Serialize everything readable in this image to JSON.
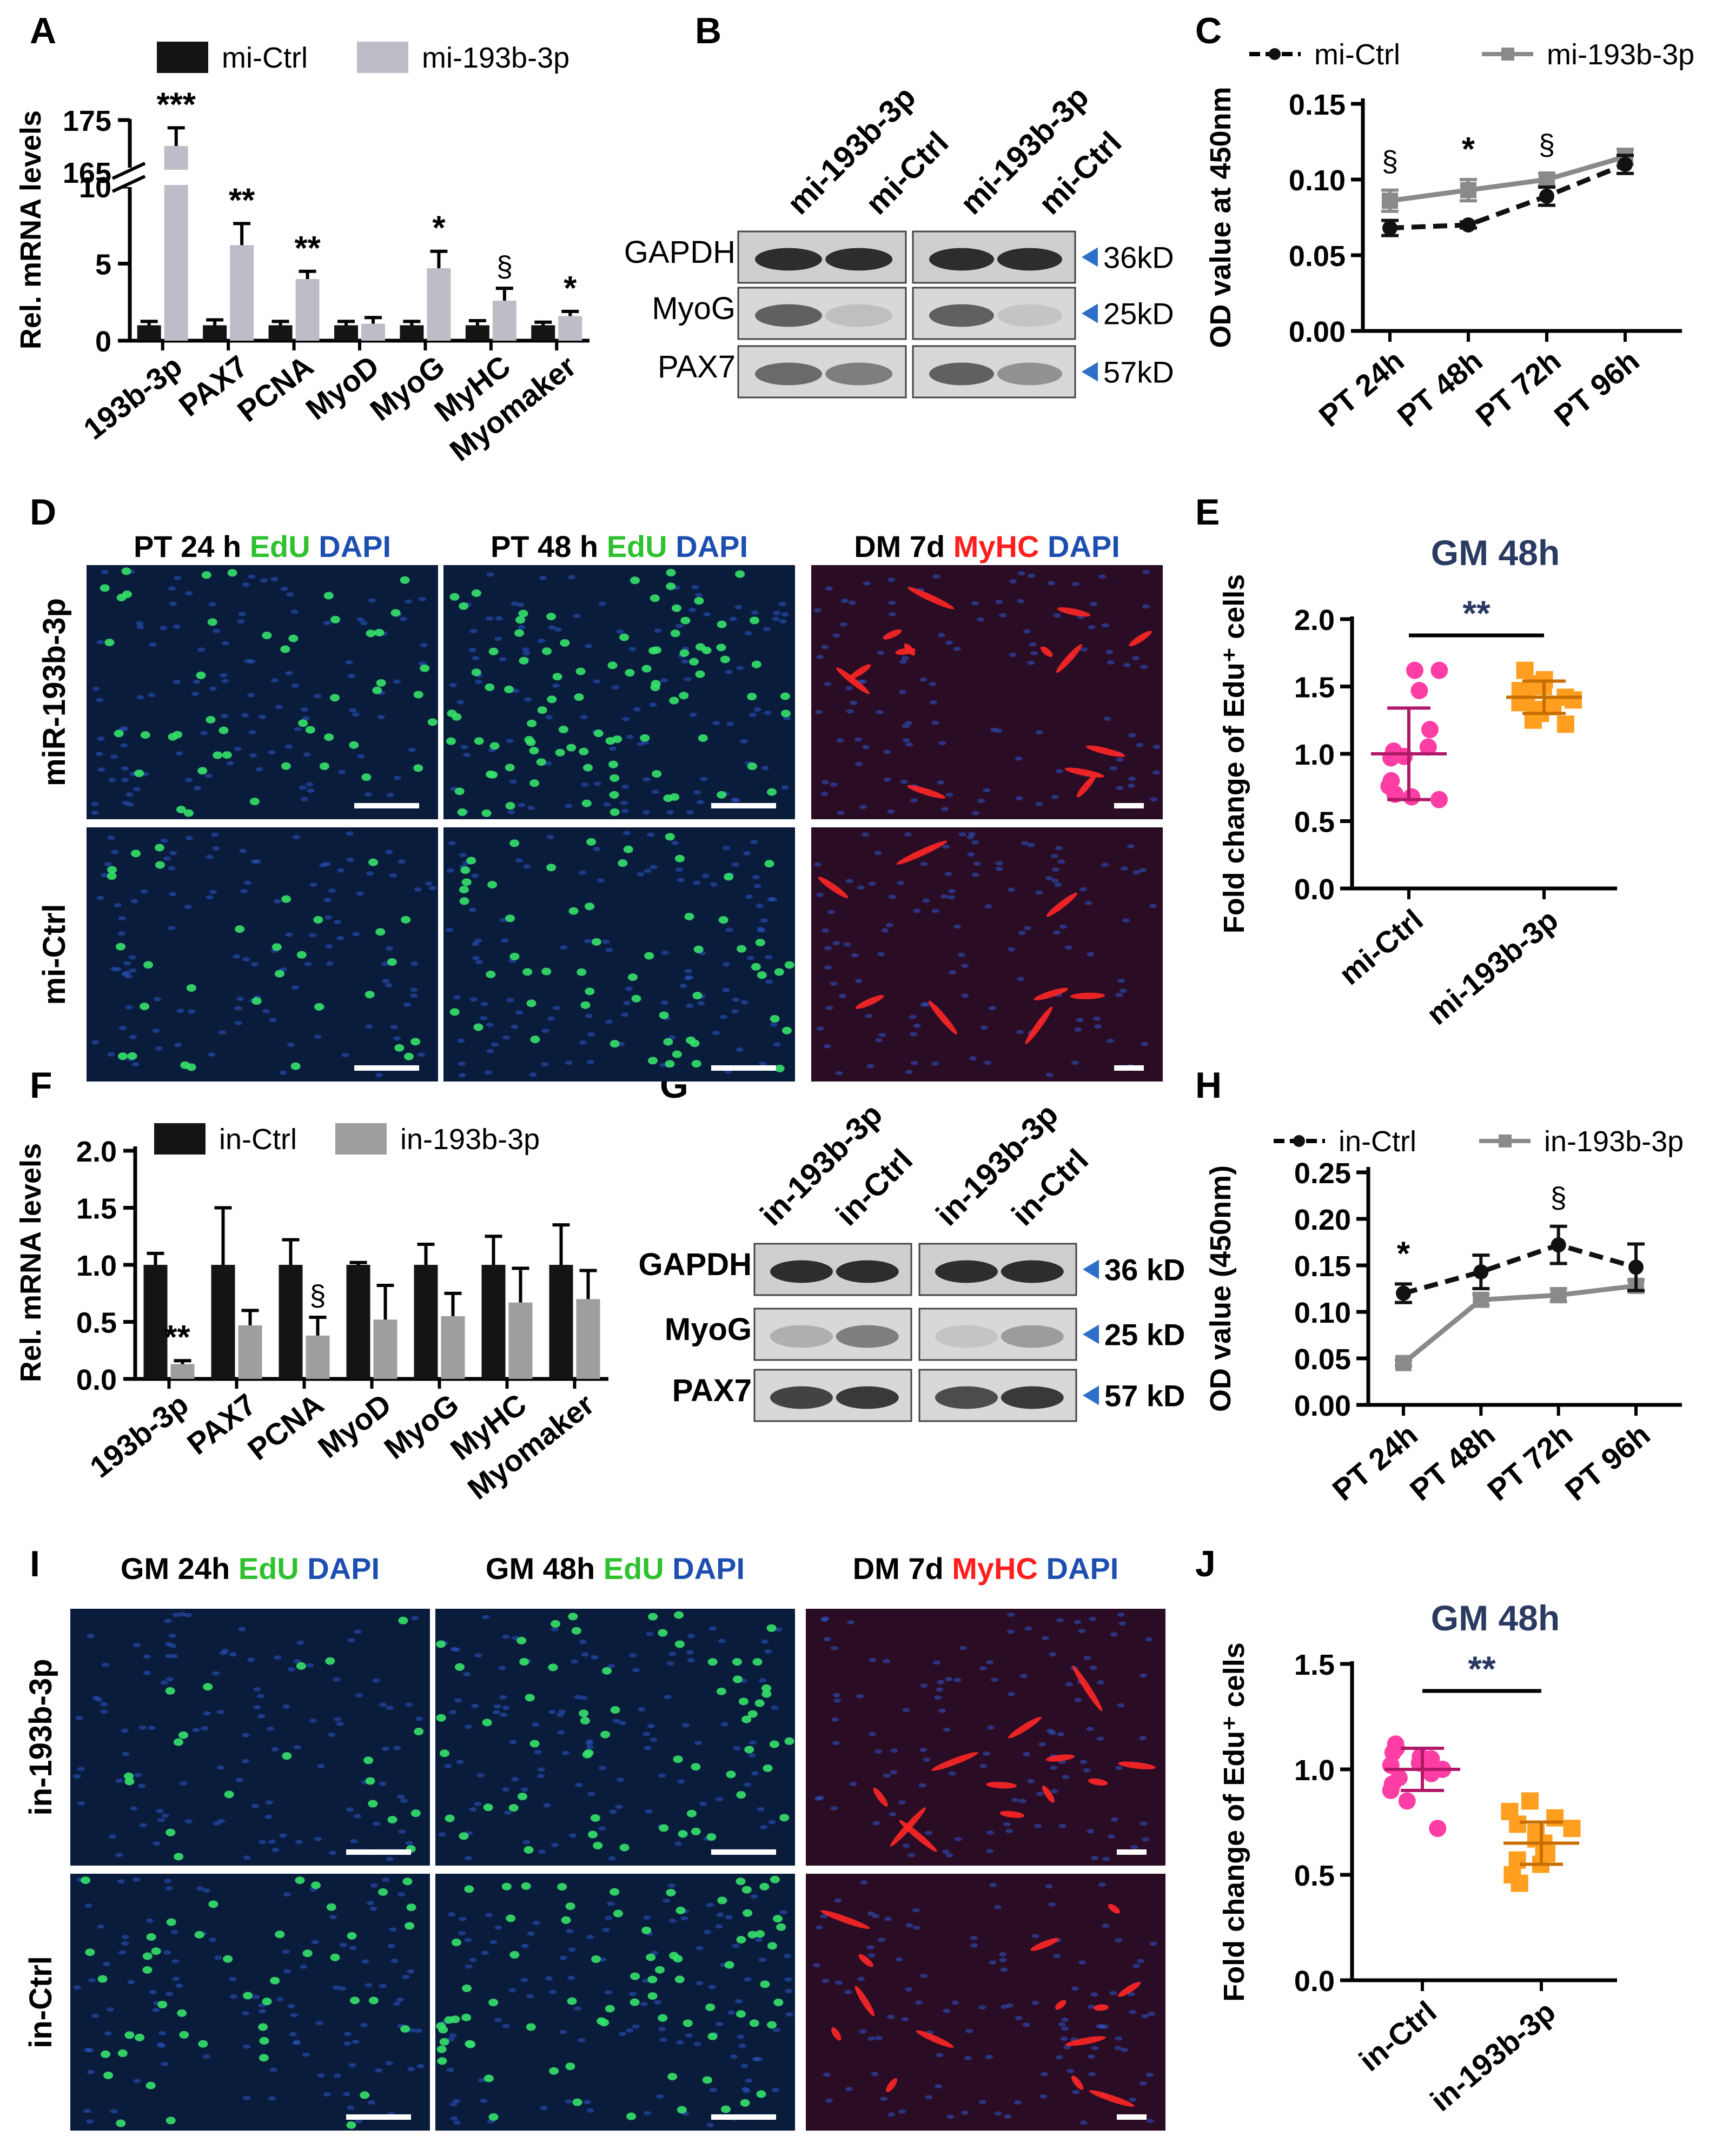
{
  "colors": {
    "ctrl_bar": "#141414",
    "treat_bar": "#bdbdc8",
    "treat_bar_inh": "#9e9e9e",
    "line_ctrl": "#111111",
    "line_treat": "#8a8a8a",
    "dot_ctrl": "#ff3ea5",
    "dot_treat": "#ff9e1f",
    "edu": "#2ec12e",
    "dapi": "#1d4fb0",
    "myhc": "#ff1e1e",
    "arrow": "#2d6ec9",
    "title_blue": "#2b3a62"
  },
  "panels": {
    "A": "A",
    "B": "B",
    "C": "C",
    "D": "D",
    "E": "E",
    "F": "F",
    "G": "G",
    "H": "H",
    "I": "I",
    "J": "J"
  },
  "chart_data": [
    {
      "panel": "A",
      "type": "bar",
      "ylabel": "Rel. mRNA levels",
      "categories": [
        "193b-3p",
        "PAX7",
        "PCNA",
        "MyoD",
        "MyoG",
        "MyHC",
        "Myomaker"
      ],
      "series": [
        {
          "name": "mi-Ctrl",
          "values": [
            1.0,
            1.0,
            1.0,
            1.0,
            1.0,
            1.0,
            1.0
          ],
          "errors": [
            0.25,
            0.35,
            0.25,
            0.25,
            0.25,
            0.3,
            0.2
          ]
        },
        {
          "name": "mi-193b-3p",
          "values": [
            170,
            6.2,
            4.0,
            1.1,
            4.7,
            2.6,
            1.6
          ],
          "errors": [
            3.5,
            1.4,
            0.5,
            0.4,
            1.1,
            0.8,
            0.3
          ]
        }
      ],
      "yticks_lower": [
        "0",
        "5",
        "10"
      ],
      "yticks_upper": [
        "165",
        "175"
      ],
      "ylim_lower": [
        0,
        10
      ],
      "ylim_upper": [
        165,
        175
      ],
      "axis_break": true,
      "significance": [
        "***",
        "**",
        "**",
        "",
        "*",
        "§",
        "*"
      ]
    },
    {
      "panel": "C",
      "type": "line",
      "ylabel": "OD value at 450nm",
      "categories": [
        "PT 24h",
        "PT 48h",
        "PT 72h",
        "PT 96h"
      ],
      "yticks": [
        "0.00",
        "0.05",
        "0.10",
        "0.15"
      ],
      "ylim": [
        0,
        0.15
      ],
      "series": [
        {
          "name": "mi-Ctrl",
          "values": [
            0.068,
            0.07,
            0.089,
            0.11
          ],
          "errors": [
            0.005,
            0.002,
            0.006,
            0.006
          ],
          "dashed": true
        },
        {
          "name": "mi-193b-3p",
          "values": [
            0.086,
            0.093,
            0.1,
            0.115
          ],
          "errors": [
            0.007,
            0.007,
            0.004,
            0.005
          ],
          "dashed": false
        }
      ],
      "significance": [
        "§",
        "*",
        "§",
        ""
      ]
    },
    {
      "panel": "E",
      "type": "scatter",
      "title": "GM 48h",
      "ylabel": "Fold change of Edu⁺ cells",
      "categories": [
        "mi-Ctrl",
        "mi-193b-3p"
      ],
      "yticks": [
        "0.0",
        "0.5",
        "1.0",
        "1.5",
        "2.0"
      ],
      "ylim": [
        0,
        2.0
      ],
      "groups": [
        {
          "name": "mi-Ctrl",
          "points": [
            1.62,
            1.62,
            1.47,
            1.18,
            1.05,
            1.02,
            0.98,
            0.97,
            0.8,
            0.76,
            0.7,
            0.66,
            0.68
          ],
          "mean": 1.0,
          "sd": 0.34
        },
        {
          "name": "mi-193b-3p",
          "points": [
            1.62,
            1.55,
            1.52,
            1.5,
            1.47,
            1.45,
            1.42,
            1.4,
            1.38,
            1.35,
            1.33,
            1.3,
            1.25,
            1.22
          ],
          "mean": 1.42,
          "sd": 0.12
        }
      ],
      "significance": "**"
    },
    {
      "panel": "F",
      "type": "bar",
      "ylabel": "Rel. mRNA levels",
      "categories": [
        "193b-3p",
        "PAX7",
        "PCNA",
        "MyoD",
        "MyoG",
        "MyHC",
        "Myomaker"
      ],
      "yticks": [
        "0.0",
        "0.5",
        "1.0",
        "1.5",
        "2.0"
      ],
      "ylim": [
        0,
        2.0
      ],
      "series": [
        {
          "name": "in-Ctrl",
          "values": [
            1.0,
            1.0,
            1.0,
            1.0,
            1.0,
            1.0,
            1.0
          ],
          "errors": [
            0.1,
            0.5,
            0.22,
            0.02,
            0.18,
            0.25,
            0.35
          ]
        },
        {
          "name": "in-193b-3p",
          "values": [
            0.13,
            0.47,
            0.38,
            0.52,
            0.55,
            0.67,
            0.7
          ],
          "errors": [
            0.03,
            0.13,
            0.16,
            0.3,
            0.2,
            0.3,
            0.25
          ]
        }
      ],
      "significance": [
        "**",
        "",
        "§",
        "",
        "",
        "",
        ""
      ]
    },
    {
      "panel": "H",
      "type": "line",
      "ylabel": "OD value (450nm)",
      "categories": [
        "PT 24h",
        "PT 48h",
        "PT 72h",
        "PT 96h"
      ],
      "yticks": [
        "0.00",
        "0.05",
        "0.10",
        "0.15",
        "0.20",
        "0.25"
      ],
      "ylim": [
        0,
        0.25
      ],
      "series": [
        {
          "name": "in-Ctrl",
          "values": [
            0.12,
            0.143,
            0.172,
            0.148
          ],
          "errors": [
            0.01,
            0.018,
            0.02,
            0.025
          ],
          "dashed": true
        },
        {
          "name": "in-193b-3p",
          "values": [
            0.045,
            0.113,
            0.118,
            0.128
          ],
          "errors": [
            0.003,
            0.006,
            0.007,
            0.006
          ],
          "dashed": false
        }
      ],
      "significance": [
        "*",
        "",
        "§",
        ""
      ]
    },
    {
      "panel": "J",
      "type": "scatter",
      "title": "GM 48h",
      "ylabel": "Fold change of Edu⁺ cells",
      "categories": [
        "in-Ctrl",
        "in-193b-3p"
      ],
      "yticks": [
        "0.0",
        "0.5",
        "1.0",
        "1.5"
      ],
      "ylim": [
        0,
        1.5
      ],
      "groups": [
        {
          "name": "in-Ctrl",
          "points": [
            1.12,
            1.1,
            1.08,
            1.06,
            1.05,
            1.03,
            1.02,
            1.0,
            0.98,
            0.96,
            0.93,
            0.9,
            0.85,
            0.72
          ],
          "mean": 1.0,
          "sd": 0.1
        },
        {
          "name": "in-193b-3p",
          "points": [
            0.85,
            0.8,
            0.77,
            0.74,
            0.72,
            0.7,
            0.67,
            0.65,
            0.62,
            0.6,
            0.57,
            0.55,
            0.5,
            0.46
          ],
          "mean": 0.65,
          "sd": 0.1
        }
      ],
      "significance": "**"
    }
  ],
  "blots": {
    "B": {
      "lanes": [
        "mi-193b-3p",
        "mi-Ctrl",
        "mi-193b-3p",
        "mi-Ctrl"
      ],
      "rows": [
        {
          "label": "GAPDH",
          "size": "36kD"
        },
        {
          "label": "MyoG",
          "size": "25kD"
        },
        {
          "label": "PAX7",
          "size": "57kD"
        }
      ]
    },
    "G": {
      "lanes": [
        "in-193b-3p",
        "in-Ctrl",
        "in-193b-3p",
        "in-Ctrl"
      ],
      "rows": [
        {
          "label": "GAPDH",
          "size": "36 kD"
        },
        {
          "label": "MyoG",
          "size": "25 kD"
        },
        {
          "label": "PAX7",
          "size": "57 kD"
        }
      ]
    }
  },
  "micrographs": {
    "D": {
      "columns": [
        [
          {
            "text": "PT 24 h ",
            "color": "#000000"
          },
          {
            "text": "EdU ",
            "color": "#2ec12e"
          },
          {
            "text": "DAPI",
            "color": "#1d4fb0"
          }
        ],
        [
          {
            "text": "PT 48 h ",
            "color": "#000000"
          },
          {
            "text": "EdU ",
            "color": "#2ec12e"
          },
          {
            "text": "DAPI",
            "color": "#1d4fb0"
          }
        ],
        [
          {
            "text": "DM 7d ",
            "color": "#000000"
          },
          {
            "text": "MyHC ",
            "color": "#ff1e1e"
          },
          {
            "text": "DAPI",
            "color": "#1d4fb0"
          }
        ]
      ],
      "rows": [
        "miR-193b-3p",
        "mi-Ctrl"
      ]
    },
    "I": {
      "columns": [
        [
          {
            "text": "GM 24h ",
            "color": "#000000"
          },
          {
            "text": "EdU ",
            "color": "#2ec12e"
          },
          {
            "text": "DAPI",
            "color": "#1d4fb0"
          }
        ],
        [
          {
            "text": "GM 48h ",
            "color": "#000000"
          },
          {
            "text": "EdU ",
            "color": "#2ec12e"
          },
          {
            "text": "DAPI",
            "color": "#1d4fb0"
          }
        ],
        [
          {
            "text": "DM 7d ",
            "color": "#000000"
          },
          {
            "text": "MyHC ",
            "color": "#ff1e1e"
          },
          {
            "text": "DAPI",
            "color": "#1d4fb0"
          }
        ]
      ],
      "rows": [
        "in-193b-3p",
        "in-Ctrl"
      ]
    }
  }
}
